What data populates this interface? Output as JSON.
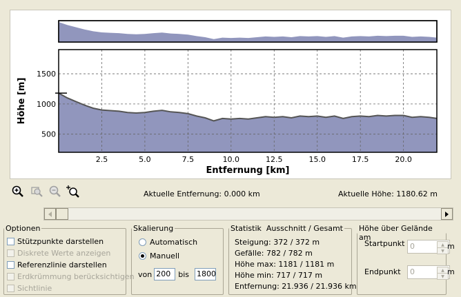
{
  "chart_data": [
    {
      "type": "area",
      "role": "overview",
      "x": [
        0,
        0.5,
        1,
        1.5,
        2,
        2.5,
        3,
        3.5,
        4,
        4.5,
        5,
        5.5,
        6,
        6.5,
        7,
        7.5,
        8,
        8.5,
        9,
        9.5,
        10,
        10.5,
        11,
        11.5,
        12,
        12.5,
        13,
        13.5,
        14,
        14.5,
        15,
        15.5,
        16,
        16.5,
        17,
        17.5,
        18,
        18.5,
        19,
        19.5,
        20,
        20.5,
        21,
        21.5,
        21.936
      ],
      "values": [
        1180,
        1100,
        1040,
        980,
        930,
        900,
        890,
        880,
        860,
        850,
        860,
        880,
        895,
        870,
        860,
        840,
        800,
        770,
        720,
        760,
        750,
        760,
        750,
        770,
        790,
        780,
        790,
        770,
        800,
        790,
        800,
        780,
        800,
        760,
        790,
        800,
        790,
        810,
        800,
        810,
        810,
        780,
        790,
        780,
        760
      ]
    },
    {
      "type": "area",
      "role": "main",
      "xlabel": "Entfernung [km]",
      "ylabel": "Höhe [m]",
      "xlim": [
        0,
        21.936
      ],
      "ylim": [
        200,
        1900
      ],
      "xticks": [
        2.5,
        5.0,
        7.5,
        10.0,
        12.5,
        15.0,
        17.5,
        20.0
      ],
      "yticks": [
        500,
        1000,
        1500
      ],
      "grid": true,
      "x": [
        0,
        0.5,
        1,
        1.5,
        2,
        2.5,
        3,
        3.5,
        4,
        4.5,
        5,
        5.5,
        6,
        6.5,
        7,
        7.5,
        8,
        8.5,
        9,
        9.5,
        10,
        10.5,
        11,
        11.5,
        12,
        12.5,
        13,
        13.5,
        14,
        14.5,
        15,
        15.5,
        16,
        16.5,
        17,
        17.5,
        18,
        18.5,
        19,
        19.5,
        20,
        20.5,
        21,
        21.5,
        21.936
      ],
      "values": [
        1180,
        1100,
        1040,
        980,
        930,
        900,
        890,
        880,
        860,
        850,
        860,
        880,
        895,
        870,
        860,
        840,
        800,
        770,
        720,
        760,
        750,
        760,
        750,
        770,
        790,
        780,
        790,
        770,
        800,
        790,
        800,
        780,
        800,
        760,
        790,
        800,
        790,
        810,
        800,
        810,
        810,
        780,
        790,
        780,
        760
      ]
    }
  ],
  "status": {
    "distance": "Aktuelle Entfernung: 0.000 km",
    "height": "Aktuelle Höhe: 1180.62 m"
  },
  "scrollbar": {
    "position": 0.0
  },
  "options": {
    "legend": "Optionen",
    "items": [
      {
        "label": "Stützpunkte darstellen",
        "checked": false,
        "enabled": true
      },
      {
        "label": "Diskrete Werte anzeigen",
        "checked": false,
        "enabled": false
      },
      {
        "label": "Referenzlinie darstellen",
        "checked": false,
        "enabled": true
      },
      {
        "label": "Erdkrümmung berücksichtigen",
        "checked": false,
        "enabled": false
      },
      {
        "label": "Sichtlinie",
        "checked": false,
        "enabled": false
      }
    ]
  },
  "scaling": {
    "legend": "Skalierung",
    "auto_label": "Automatisch",
    "manual_label": "Manuell",
    "selected": "Manuell",
    "from_label": "von",
    "from_value": "200",
    "to_label": "bis",
    "to_value": "1800"
  },
  "stats": {
    "legend": "Statistik  Ausschnitt / Gesamt",
    "lines": [
      "Steigung: 372 / 372 m",
      "Gefälle: 782 / 782 m",
      "Höhe max: 1181 / 1181 m",
      "Höhe min: 717 / 717 m",
      "Entfernung: 21.936 / 21.936 km"
    ]
  },
  "terrain": {
    "legend": "Höhe über Gelände am",
    "start_label": "Startpunkt",
    "start_value": "0",
    "start_unit": "m",
    "end_label": "Endpunkt",
    "end_value": "0",
    "end_unit": "m"
  },
  "colors": {
    "fill": "#9196bd",
    "line": "#555555"
  }
}
